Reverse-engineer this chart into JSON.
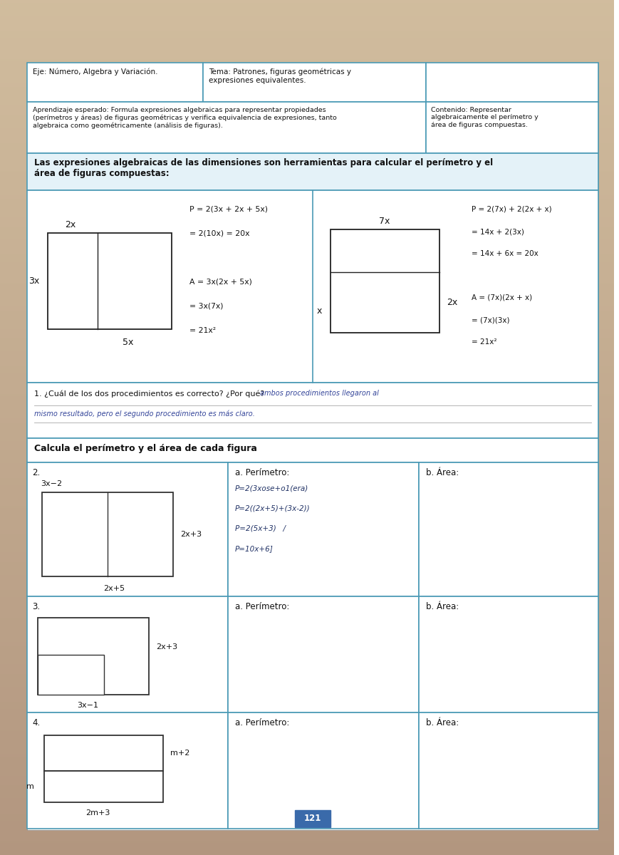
{
  "bg_color_top": "#d4c4b0",
  "bg_color_bot": "#b8a080",
  "page_fc": "#f5f2ee",
  "blue_border": "#4a9ab5",
  "header": {
    "eje": "Eje: Número, Algebra y Variación.",
    "tema": "Tema: Patrones, figuras geométricas y\nexpresiones equivalentes.",
    "aprendizaje": "Aprendizaje esperado: Formula expresiones algebraicas para representar propiedades\n(perímetros y áreas) de figuras geométricas y verifica equivalencia de expresiones, tanto\nalgebraica como geométricamente (análisis de figuras).",
    "contenido_label": "Contenido: Representar\nalgebraicamente el perímetro y\nárea de figuras compuestas."
  },
  "intro_text": "Las expresiones algebraicas de las dimensiones son herramientas para calcular el perímetro y el\nárea de figuras compuestas:",
  "fig1_formulas": [
    "P = 2(3x + 2x + 5x)",
    "= 2(10x) = 20x",
    "",
    "A = 3x(2x + 5x)",
    "= 3x(7x)",
    "= 21x²"
  ],
  "fig2_formulas": [
    "P = 2(7x) + 2(2x + x)",
    "= 14x + 2(3x)",
    "= 14x + 6x = 20x",
    "",
    "A = (7x)(2x + x)",
    "= (7x)(3x)",
    "= 21x²"
  ],
  "question1": "1. ¿Cuál de los dos procedimientos es correcto? ¿Por qué?",
  "answer1_line1": "ambos procedimientos llegaron al",
  "answer1_line2": "mismo resultado, pero el segundo procedimiento es más claro.",
  "calcula_title": "Calcula el perímetro y el área de cada figura",
  "prob2_col_a": "a. Perímetro:",
  "prob2_col_b": "b. Área:",
  "prob3_col_a": "a. Perímetro:",
  "prob3_col_b": "b. Área:",
  "prob4_col_a": "a. Perímetro:",
  "prob4_col_b": "b. Área:",
  "page_number": "121",
  "handwritten2": [
    "P=2(3xose+o1(era)",
    "P=2((2x+5)+(3x-2))",
    "P=2(5x+3)   /",
    "P=10x+6]"
  ]
}
